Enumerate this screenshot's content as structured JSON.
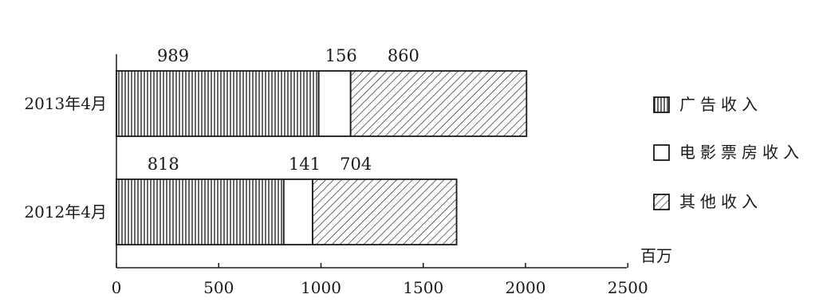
{
  "chart_data": {
    "type": "bar",
    "orientation": "horizontal",
    "stacked": true,
    "categories": [
      "2013年4月",
      "2012年4月"
    ],
    "series": [
      {
        "name": "广告收入",
        "values": [
          989,
          818
        ],
        "pattern": "vertical-lines"
      },
      {
        "name": "电影票房收入",
        "values": [
          156,
          141
        ],
        "pattern": "blank"
      },
      {
        "name": "其他收入",
        "values": [
          860,
          704
        ],
        "pattern": "diagonal-hatch"
      }
    ],
    "xticks": [
      "0",
      "500",
      "1000",
      "1500",
      "2000",
      "2500"
    ],
    "xlim": [
      0,
      2500
    ],
    "xunit": "百万",
    "data_labels": [
      [
        "989",
        "156",
        "860"
      ],
      [
        "818",
        "141",
        "704"
      ]
    ],
    "legend_position": "right",
    "grid": false,
    "colors": {
      "ink": "#1a1a1a",
      "background": "#ffffff"
    }
  }
}
